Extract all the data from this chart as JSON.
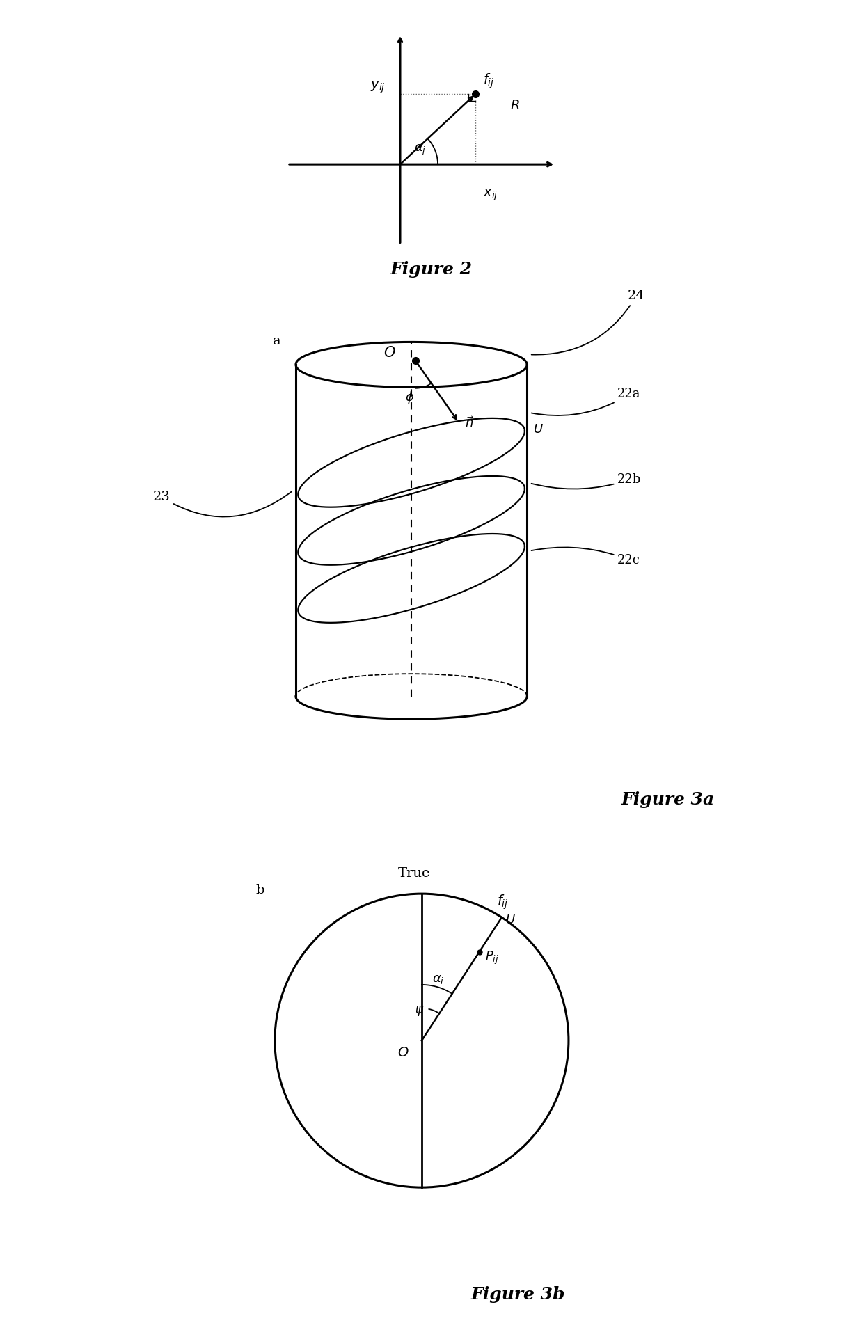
{
  "bg_color": "#ffffff",
  "fig2_caption": "Figure 2",
  "fig3a_caption": "Figure 3a",
  "fig3b_caption": "Figure 3b"
}
